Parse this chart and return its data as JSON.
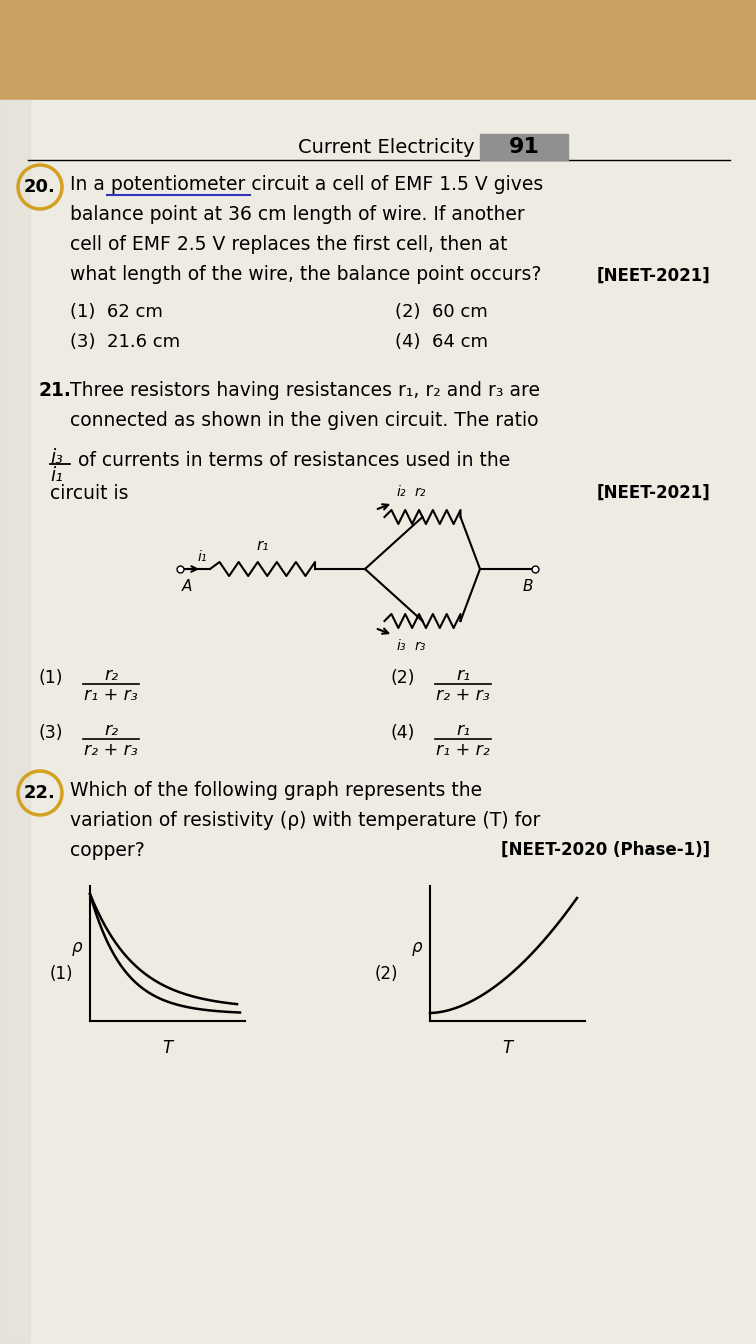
{
  "wood_color": "#c8a060",
  "paper_color": "#eeebe3",
  "paper_gray": "#e0ddd5",
  "header_text": "Current Electricity",
  "header_num": "91",
  "header_gray": "#909090",
  "q20_num": "20.",
  "q20_line1": "In a potentiometer circuit a cell of EMF 1.5 V gives",
  "q20_line2": "balance point at 36 cm length of wire. If another",
  "q20_line3": "cell of EMF 2.5 V replaces the first cell, then at",
  "q20_line4": "what length of the wire, the balance point occurs?",
  "q20_neet": "[NEET-2021]",
  "q20_opt1": "(1)  62 cm",
  "q20_opt2": "(2)  60 cm",
  "q20_opt3": "(3)  21.6 cm",
  "q20_opt4": "(4)  64 cm",
  "q21_num": "21.",
  "q21_line1": "Three resistors having resistances r₁, r₂ and r₃ are",
  "q21_line2": "connected as shown in the given circuit. The ratio",
  "q21_frac_num": "i₃",
  "q21_frac_den": "i₁",
  "q21_line3": "of currents in terms of resistances used in the",
  "q21_line4": "circuit is",
  "q21_neet": "[NEET-2021]",
  "q21_opt1_num": "r₂",
  "q21_opt1_den": "r₁ + r₃",
  "q21_opt2_num": "r₁",
  "q21_opt2_den": "r₂ + r₃",
  "q21_opt3_num": "r₂",
  "q21_opt3_den": "r₂ + r₃",
  "q21_opt4_num": "r₁",
  "q21_opt4_den": "r₁ + r₂",
  "q22_num": "22.",
  "q22_line1": "Which of the following graph represents the",
  "q22_line2": "variation of resistivity (ρ) with temperature (T) for",
  "q22_line3": "copper?",
  "q22_neet": "[NEET-2020 (Phase-1)]",
  "circ20_color": "#d4a020",
  "circ22_color": "#d4a020",
  "blue_ul": "#3333bb",
  "lh": 30,
  "fs_main": 13.5,
  "fs_opt": 13,
  "fs_header": 14
}
